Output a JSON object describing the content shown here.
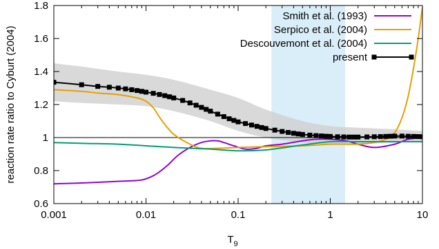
{
  "chart_data": {
    "type": "line",
    "xlabel": "T",
    "xlabel_sub": "9",
    "ylabel": "reaction rate ratio to Cyburt (2004)",
    "xscale": "log",
    "xlim": [
      0.001,
      10
    ],
    "ylim": [
      0.6,
      1.8
    ],
    "x_ticks": [
      {
        "value": 0.001,
        "label": "0.001"
      },
      {
        "value": 0.01,
        "label": "0.01"
      },
      {
        "value": 0.1,
        "label": "0.1"
      },
      {
        "value": 1,
        "label": "1"
      },
      {
        "value": 10,
        "label": "10"
      }
    ],
    "y_ticks": [
      {
        "value": 0.6,
        "label": "0.6"
      },
      {
        "value": 0.8,
        "label": "0.8"
      },
      {
        "value": 1.0,
        "label": "1"
      },
      {
        "value": 1.2,
        "label": "1.2"
      },
      {
        "value": 1.4,
        "label": "1.4"
      },
      {
        "value": 1.6,
        "label": "1.6"
      },
      {
        "value": 1.8,
        "label": "1.8"
      }
    ],
    "reference_line": 1.0,
    "shaded_region": {
      "x": [
        0.23,
        1.45
      ],
      "color": "#d9eef8"
    },
    "uncertainty_band": {
      "color": "#d0d0d0",
      "x": [
        0.001,
        0.002,
        0.005,
        0.01,
        0.02,
        0.05,
        0.1,
        0.2,
        0.5,
        1,
        2,
        5,
        10
      ],
      "upper": [
        1.45,
        1.43,
        1.4,
        1.38,
        1.35,
        1.29,
        1.24,
        1.17,
        1.1,
        1.07,
        1.06,
        1.05,
        1.04
      ],
      "lower": [
        1.22,
        1.21,
        1.2,
        1.19,
        1.16,
        1.1,
        1.04,
        1.0,
        0.97,
        0.96,
        0.96,
        0.97,
        0.97
      ]
    },
    "legend_position": "top-right",
    "series": [
      {
        "name": "Smith et al. (1993)",
        "color": "#9400d3",
        "x": [
          0.001,
          0.002,
          0.005,
          0.008,
          0.01,
          0.013,
          0.017,
          0.022,
          0.03,
          0.04,
          0.05,
          0.06,
          0.07,
          0.09,
          0.12,
          0.16,
          0.2,
          0.3,
          0.5,
          0.7,
          1.0,
          1.5,
          2.0,
          3.0,
          5.0,
          7.0,
          10.0
        ],
        "values": [
          0.72,
          0.725,
          0.735,
          0.74,
          0.75,
          0.78,
          0.83,
          0.89,
          0.94,
          0.97,
          0.98,
          0.98,
          0.97,
          0.95,
          0.93,
          0.935,
          0.95,
          0.96,
          0.98,
          0.99,
          0.99,
          0.98,
          0.96,
          0.94,
          0.96,
          0.99,
          1.0
        ]
      },
      {
        "name": "Serpico et al. (2004)",
        "color": "#e69f00",
        "x": [
          0.001,
          0.002,
          0.003,
          0.005,
          0.008,
          0.01,
          0.012,
          0.015,
          0.02,
          0.03,
          0.04,
          0.06,
          0.1,
          0.2,
          0.5,
          1,
          2,
          3,
          4,
          5,
          6,
          7,
          8,
          9,
          10
        ],
        "values": [
          1.29,
          1.28,
          1.27,
          1.26,
          1.24,
          1.22,
          1.18,
          1.1,
          1.02,
          0.96,
          0.935,
          0.935,
          0.94,
          0.945,
          0.95,
          0.96,
          0.96,
          0.97,
          0.99,
          1.03,
          1.12,
          1.25,
          1.42,
          1.6,
          1.79
        ]
      },
      {
        "name": "Descouvemont et al. (2004)",
        "color": "#009e73",
        "x": [
          0.001,
          0.002,
          0.005,
          0.01,
          0.02,
          0.05,
          0.1,
          0.2,
          0.5,
          1,
          2,
          5,
          10
        ],
        "values": [
          0.97,
          0.965,
          0.96,
          0.95,
          0.94,
          0.93,
          0.92,
          0.925,
          0.955,
          0.975,
          0.975,
          0.975,
          0.975
        ]
      },
      {
        "name": "present",
        "color": "#000000",
        "marker": "square",
        "x": [
          0.001,
          0.002,
          0.003,
          0.004,
          0.005,
          0.006,
          0.007,
          0.008,
          0.009,
          0.01,
          0.012,
          0.014,
          0.016,
          0.018,
          0.02,
          0.025,
          0.03,
          0.035,
          0.04,
          0.045,
          0.05,
          0.06,
          0.07,
          0.08,
          0.09,
          0.1,
          0.12,
          0.14,
          0.16,
          0.18,
          0.2,
          0.25,
          0.3,
          0.35,
          0.4,
          0.45,
          0.5,
          0.6,
          0.7,
          0.8,
          0.9,
          1,
          1.2,
          1.4,
          1.6,
          1.8,
          2,
          2.5,
          3,
          3.5,
          4,
          4.5,
          5,
          6,
          7,
          8,
          9,
          10
        ],
        "values": [
          1.335,
          1.32,
          1.31,
          1.305,
          1.3,
          1.295,
          1.29,
          1.285,
          1.28,
          1.275,
          1.268,
          1.261,
          1.254,
          1.247,
          1.24,
          1.225,
          1.21,
          1.196,
          1.183,
          1.171,
          1.16,
          1.142,
          1.127,
          1.114,
          1.104,
          1.095,
          1.085,
          1.076,
          1.068,
          1.061,
          1.055,
          1.045,
          1.037,
          1.031,
          1.026,
          1.022,
          1.019,
          1.015,
          1.012,
          1.01,
          1.008,
          1.007,
          1.005,
          1.004,
          1.003,
          1.003,
          1.003,
          1.004,
          1.005,
          1.006,
          1.007,
          1.008,
          1.009,
          1.009,
          1.008,
          1.007,
          1.006,
          1.005
        ]
      }
    ]
  }
}
